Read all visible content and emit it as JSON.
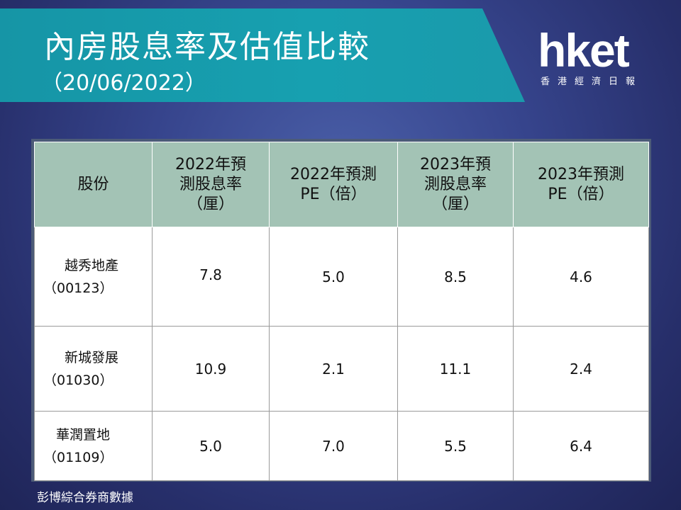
{
  "header": {
    "title": "內房股息率及估值比較",
    "subtitle": "（20/06/2022）"
  },
  "logo": {
    "brand": "hket",
    "tagline": "香港經濟日報"
  },
  "chart_data": {
    "type": "table",
    "columns": [
      "股份",
      "2022年預測股息率（厘）",
      "2022年預測PE（倍）",
      "2023年預測股息率（厘）",
      "2023年預測PE（倍）"
    ],
    "header_lines": [
      [
        "股份"
      ],
      [
        "2022年預",
        "測股息率",
        "（厘）"
      ],
      [
        "2022年預測",
        "PE（倍）"
      ],
      [
        "2023年預",
        "測股息率",
        "（厘）"
      ],
      [
        "2023年預測",
        "PE（倍）"
      ]
    ],
    "rows": [
      {
        "name": "越秀地產",
        "code": "（00123）",
        "values": [
          "7.8",
          "5.0",
          "8.5",
          "4.6"
        ]
      },
      {
        "name": "新城發展",
        "code": "（01030）",
        "values": [
          "10.9",
          "2.1",
          "11.1",
          "2.4"
        ]
      },
      {
        "name": "華潤置地",
        "code": "（01109）",
        "values": [
          "5.0",
          "7.0",
          "5.5",
          "6.4"
        ]
      }
    ]
  },
  "footnote": "彭博綜合券商數據",
  "colors": {
    "banner": "#17a0b0",
    "header_fill": "#a3c3b5",
    "background": "#36448c"
  }
}
